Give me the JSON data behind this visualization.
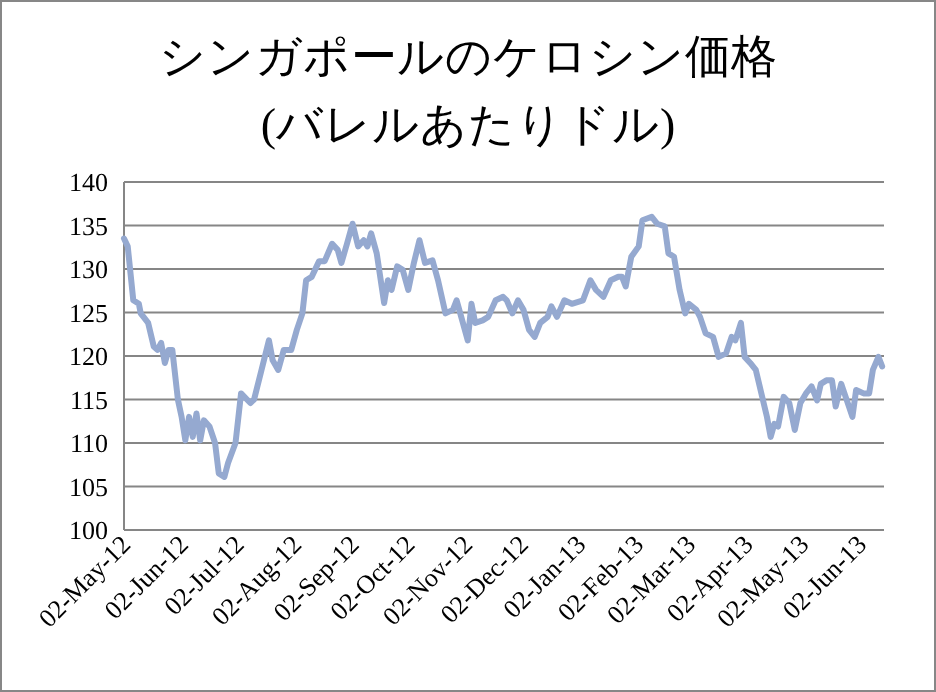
{
  "chart_data": {
    "type": "line",
    "title": "シンガポールのケロシン価格",
    "subtitle": "(バレルあたりドル)",
    "x": [
      "2012-05-02",
      "2012-05-04",
      "2012-05-07",
      "2012-05-10",
      "2012-05-11",
      "2012-05-15",
      "2012-05-18",
      "2012-05-20",
      "2012-05-22",
      "2012-05-24",
      "2012-05-26",
      "2012-05-28",
      "2012-05-31",
      "2012-06-02",
      "2012-06-04",
      "2012-06-06",
      "2012-06-08",
      "2012-06-10",
      "2012-06-12",
      "2012-06-14",
      "2012-06-17",
      "2012-06-20",
      "2012-06-22",
      "2012-06-25",
      "2012-06-27",
      "2012-07-01",
      "2012-07-04",
      "2012-07-09",
      "2012-07-11",
      "2012-07-15",
      "2012-07-19",
      "2012-07-21",
      "2012-07-24",
      "2012-07-27",
      "2012-07-31",
      "2012-08-03",
      "2012-08-06",
      "2012-08-08",
      "2012-08-11",
      "2012-08-15",
      "2012-08-18",
      "2012-08-22",
      "2012-08-25",
      "2012-08-27",
      "2012-08-30",
      "2012-09-02",
      "2012-09-05",
      "2012-09-08",
      "2012-09-10",
      "2012-09-12",
      "2012-09-15",
      "2012-09-19",
      "2012-09-21",
      "2012-09-23",
      "2012-09-26",
      "2012-09-29",
      "2012-10-02",
      "2012-10-05",
      "2012-10-08",
      "2012-10-11",
      "2012-10-15",
      "2012-10-18",
      "2012-10-22",
      "2012-10-26",
      "2012-10-28",
      "2012-10-31",
      "2012-11-03",
      "2012-11-05",
      "2012-11-07",
      "2012-11-11",
      "2012-11-14",
      "2012-11-18",
      "2012-11-22",
      "2012-11-24",
      "2012-11-27",
      "2012-11-30",
      "2012-12-03",
      "2012-12-06",
      "2012-12-09",
      "2012-12-12",
      "2012-12-16",
      "2012-12-18",
      "2012-12-21",
      "2012-12-25",
      "2012-12-29",
      "2013-01-04",
      "2013-01-08",
      "2013-01-11",
      "2013-01-15",
      "2013-01-19",
      "2013-01-23",
      "2013-01-25",
      "2013-01-27",
      "2013-01-30",
      "2013-02-03",
      "2013-02-05",
      "2013-02-10",
      "2013-02-13",
      "2013-02-17",
      "2013-02-19",
      "2013-02-22",
      "2013-02-25",
      "2013-02-28",
      "2013-03-02",
      "2013-03-06",
      "2013-03-08",
      "2013-03-11",
      "2013-03-15",
      "2013-03-18",
      "2013-03-22",
      "2013-03-25",
      "2013-03-27",
      "2013-03-30",
      "2013-04-01",
      "2013-04-04",
      "2013-04-07",
      "2013-04-10",
      "2013-04-13",
      "2013-04-15",
      "2013-04-17",
      "2013-04-19",
      "2013-04-22",
      "2013-04-25",
      "2013-04-28",
      "2013-05-01",
      "2013-05-04",
      "2013-05-07",
      "2013-05-10",
      "2013-05-12",
      "2013-05-15",
      "2013-05-18",
      "2013-05-20",
      "2013-05-23",
      "2013-05-26",
      "2013-05-29",
      "2013-05-31",
      "2013-06-04",
      "2013-06-07",
      "2013-06-09",
      "2013-06-12",
      "2013-06-14"
    ],
    "series": [
      {
        "color": "#95a9d0",
        "values": [
          133.5,
          132.6,
          126.4,
          126,
          124.9,
          123.8,
          121.1,
          120.7,
          121.5,
          119.2,
          120.7,
          120.7,
          115,
          113,
          110.3,
          113,
          110.7,
          113.4,
          110.3,
          112.6,
          111.9,
          110,
          106.5,
          106.1,
          107.7,
          110,
          115.7,
          114.6,
          115,
          118.4,
          121.8,
          119.5,
          118.4,
          120.7,
          120.7,
          123,
          124.9,
          128.7,
          129.1,
          130.9,
          130.9,
          132.9,
          132.2,
          130.7,
          132.9,
          135.2,
          132.6,
          133.3,
          132.6,
          134.1,
          131.8,
          126.1,
          128.7,
          127.6,
          130.3,
          129.9,
          127.6,
          130.7,
          133.3,
          130.7,
          131,
          128.7,
          124.9,
          125.3,
          126.4,
          124.1,
          121.8,
          126,
          123.8,
          124.1,
          124.5,
          126.4,
          126.8,
          126.4,
          124.9,
          126.4,
          125.3,
          123,
          122.2,
          123.8,
          124.5,
          125.7,
          124.5,
          126.4,
          126,
          126.4,
          128.7,
          127.6,
          126.8,
          128.7,
          129.1,
          129.1,
          128,
          131.4,
          132.6,
          135.6,
          136,
          135.2,
          134.9,
          131.8,
          131.4,
          127.6,
          124.9,
          126,
          125.3,
          124.5,
          122.6,
          122.2,
          119.9,
          120.3,
          122.2,
          121.8,
          123.8,
          119.9,
          119.2,
          118.4,
          115.7,
          113,
          110.7,
          112.2,
          111.9,
          115.3,
          114.6,
          111.5,
          114.6,
          115.7,
          116.5,
          114.9,
          116.8,
          117.2,
          117.2,
          114.2,
          116.8,
          114.9,
          113,
          116.1,
          115.7,
          115.7,
          118.4,
          119.9,
          118.8
        ]
      }
    ],
    "xlim": [
      "2012-05-02",
      "2013-06-15"
    ],
    "xticks": [
      {
        "value": "2012-05-02",
        "label": "02-May-12"
      },
      {
        "value": "2012-06-02",
        "label": "02-Jun-12"
      },
      {
        "value": "2012-07-02",
        "label": "02-Jul-12"
      },
      {
        "value": "2012-08-02",
        "label": "02-Aug-12"
      },
      {
        "value": "2012-09-02",
        "label": "02-Sep-12"
      },
      {
        "value": "2012-10-02",
        "label": "02-Oct-12"
      },
      {
        "value": "2012-11-02",
        "label": "02-Nov-12"
      },
      {
        "value": "2012-12-02",
        "label": "02-Dec-12"
      },
      {
        "value": "2013-01-02",
        "label": "02-Jan-13"
      },
      {
        "value": "2013-02-02",
        "label": "02-Feb-13"
      },
      {
        "value": "2013-03-02",
        "label": "02-Mar-13"
      },
      {
        "value": "2013-04-02",
        "label": "02-Apr-13"
      },
      {
        "value": "2013-05-02",
        "label": "02-May-13"
      },
      {
        "value": "2013-06-02",
        "label": "02-Jun-13"
      }
    ],
    "ylim": [
      100,
      140
    ],
    "yticks": [
      100,
      105,
      110,
      115,
      120,
      125,
      130,
      135,
      140
    ],
    "grid": "y",
    "marker": "none",
    "line_style": "solid"
  }
}
